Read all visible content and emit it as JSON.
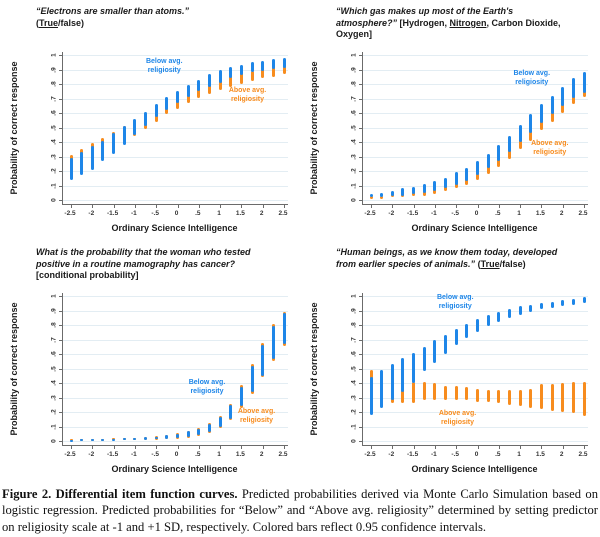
{
  "colors": {
    "below": "#1e86e8",
    "above": "#f78c1e",
    "grid": "#e3edf3",
    "axis": "#6b6b6b",
    "tick_text": "#333333",
    "title_text": "#1a1a1a"
  },
  "axes": {
    "x_label": "Ordinary Science Intelligence",
    "y_label": "Probability of correct response",
    "xlim": [
      -2.5,
      2.5
    ],
    "ylim": [
      0,
      1
    ],
    "x_tick_labels": [
      "-2.5",
      "-2",
      "-1.5",
      "-1",
      "-.5",
      "0",
      ".5",
      "1",
      "1.5",
      "2",
      "2.5"
    ],
    "x_tick_values": [
      -2.5,
      -2,
      -1.5,
      -1,
      -0.5,
      0,
      0.5,
      1,
      1.5,
      2,
      2.5
    ],
    "y_tick_labels": [
      "0",
      ".1",
      ".2",
      ".3",
      ".4",
      ".5",
      ".6",
      ".7",
      ".8",
      ".9",
      "1"
    ],
    "y_tick_values": [
      0,
      0.1,
      0.2,
      0.3,
      0.4,
      0.5,
      0.6,
      0.7,
      0.8,
      0.9,
      1
    ],
    "grid": true
  },
  "legend_text": {
    "below_lines": [
      "Below avg.",
      "religiosity"
    ],
    "above_lines": [
      "Above avg.",
      "religiosity"
    ]
  },
  "chart_data": [
    {
      "id": "electrons",
      "type": "ci-bar",
      "title_segments": [
        {
          "t": "“Electrons are smaller than atoms.”",
          "i": true
        },
        {
          "br": true
        },
        {
          "t": "("
        },
        {
          "t": "True",
          "u": true
        },
        {
          "t": "/false)"
        }
      ],
      "x": [
        -2.5,
        -2.25,
        -2,
        -1.75,
        -1.5,
        -1.25,
        -1,
        -0.75,
        -0.5,
        -0.25,
        0,
        0.25,
        0.5,
        0.75,
        1,
        1.25,
        1.5,
        1.75,
        2,
        2.25,
        2.5
      ],
      "series": [
        {
          "name": "Above avg. religiosity",
          "key": "above",
          "ci": [
            [
              0.16,
              0.31
            ],
            [
              0.2,
              0.35
            ],
            [
              0.24,
              0.39
            ],
            [
              0.29,
              0.43
            ],
            [
              0.34,
              0.47
            ],
            [
              0.39,
              0.51
            ],
            [
              0.44,
              0.55
            ],
            [
              0.49,
              0.6
            ],
            [
              0.54,
              0.64
            ],
            [
              0.59,
              0.68
            ],
            [
              0.63,
              0.72
            ],
            [
              0.67,
              0.75
            ],
            [
              0.7,
              0.78
            ],
            [
              0.73,
              0.81
            ],
            [
              0.76,
              0.84
            ],
            [
              0.78,
              0.86
            ],
            [
              0.8,
              0.88
            ],
            [
              0.82,
              0.89
            ],
            [
              0.84,
              0.91
            ],
            [
              0.85,
              0.92
            ],
            [
              0.87,
              0.93
            ]
          ]
        },
        {
          "name": "Below avg. religiosity",
          "key": "below",
          "ci": [
            [
              0.14,
              0.29
            ],
            [
              0.17,
              0.33
            ],
            [
              0.21,
              0.37
            ],
            [
              0.27,
              0.41
            ],
            [
              0.32,
              0.46
            ],
            [
              0.38,
              0.51
            ],
            [
              0.45,
              0.56
            ],
            [
              0.51,
              0.61
            ],
            [
              0.57,
              0.66
            ],
            [
              0.62,
              0.71
            ],
            [
              0.67,
              0.75
            ],
            [
              0.71,
              0.79
            ],
            [
              0.75,
              0.83
            ],
            [
              0.78,
              0.87
            ],
            [
              0.81,
              0.9
            ],
            [
              0.84,
              0.92
            ],
            [
              0.86,
              0.93
            ],
            [
              0.88,
              0.95
            ],
            [
              0.89,
              0.96
            ],
            [
              0.9,
              0.97
            ],
            [
              0.91,
              0.98
            ]
          ]
        }
      ],
      "legend": {
        "below": {
          "left_pct": 45,
          "top_pct": 9
        },
        "above": {
          "left_pct": 82,
          "top_pct": 28
        }
      }
    },
    {
      "id": "atmosphere-gas",
      "type": "ci-bar",
      "title_segments": [
        {
          "t": "“Which gas makes up most of the Earth's atmosphere?”",
          "i": true
        },
        {
          "t": " [Hydrogen, "
        },
        {
          "t": "Nitrogen",
          "u": true
        },
        {
          "t": ", Carbon Dioxide, Oxygen]"
        }
      ],
      "x": [
        -2.5,
        -2.25,
        -2,
        -1.75,
        -1.5,
        -1.25,
        -1,
        -0.75,
        -0.5,
        -0.25,
        0,
        0.25,
        0.5,
        0.75,
        1,
        1.25,
        1.5,
        1.75,
        2,
        2.25,
        2.5
      ],
      "series": [
        {
          "name": "Above avg. religiosity",
          "key": "above",
          "ci": [
            [
              0.01,
              0.03
            ],
            [
              0.01,
              0.03
            ],
            [
              0.02,
              0.04
            ],
            [
              0.02,
              0.05
            ],
            [
              0.03,
              0.06
            ],
            [
              0.03,
              0.08
            ],
            [
              0.04,
              0.09
            ],
            [
              0.06,
              0.11
            ],
            [
              0.08,
              0.13
            ],
            [
              0.1,
              0.16
            ],
            [
              0.14,
              0.2
            ],
            [
              0.18,
              0.25
            ],
            [
              0.23,
              0.3
            ],
            [
              0.28,
              0.37
            ],
            [
              0.35,
              0.44
            ],
            [
              0.41,
              0.5
            ],
            [
              0.48,
              0.57
            ],
            [
              0.54,
              0.63
            ],
            [
              0.6,
              0.68
            ],
            [
              0.66,
              0.73
            ],
            [
              0.71,
              0.77
            ]
          ]
        },
        {
          "name": "Below avg. religiosity",
          "key": "below",
          "ci": [
            [
              0.02,
              0.04
            ],
            [
              0.02,
              0.05
            ],
            [
              0.03,
              0.06
            ],
            [
              0.03,
              0.08
            ],
            [
              0.04,
              0.09
            ],
            [
              0.05,
              0.11
            ],
            [
              0.06,
              0.13
            ],
            [
              0.08,
              0.15
            ],
            [
              0.1,
              0.19
            ],
            [
              0.13,
              0.22
            ],
            [
              0.17,
              0.27
            ],
            [
              0.22,
              0.32
            ],
            [
              0.27,
              0.38
            ],
            [
              0.33,
              0.44
            ],
            [
              0.4,
              0.52
            ],
            [
              0.46,
              0.59
            ],
            [
              0.53,
              0.66
            ],
            [
              0.59,
              0.72
            ],
            [
              0.65,
              0.78
            ],
            [
              0.7,
              0.84
            ],
            [
              0.74,
              0.88
            ]
          ]
        }
      ],
      "legend": {
        "below": {
          "left_pct": 75,
          "top_pct": 17
        },
        "above": {
          "left_pct": 83,
          "top_pct": 63
        }
      }
    },
    {
      "id": "mammography",
      "type": "ci-bar",
      "title_segments": [
        {
          "t": "What is the probability that the woman who tested positive in a routine mamography has cancer?",
          "i": true
        },
        {
          "t": " [conditional probability]"
        }
      ],
      "x": [
        -2.5,
        -2.25,
        -2,
        -1.75,
        -1.5,
        -1.25,
        -1,
        -0.75,
        -0.5,
        -0.25,
        0,
        0.25,
        0.5,
        0.75,
        1,
        1.25,
        1.5,
        1.75,
        2,
        2.25,
        2.5
      ],
      "series": [
        {
          "name": "Above avg. religiosity",
          "key": "above",
          "ci": [
            [
              0.002,
              0.011
            ],
            [
              0.002,
              0.012
            ],
            [
              0.003,
              0.013
            ],
            [
              0.004,
              0.015
            ],
            [
              0.004,
              0.018
            ],
            [
              0.005,
              0.021
            ],
            [
              0.006,
              0.024
            ],
            [
              0.008,
              0.029
            ],
            [
              0.01,
              0.034
            ],
            [
              0.012,
              0.042
            ],
            [
              0.017,
              0.054
            ],
            [
              0.024,
              0.07
            ],
            [
              0.036,
              0.091
            ],
            [
              0.057,
              0.121
            ],
            [
              0.091,
              0.172
            ],
            [
              0.147,
              0.258
            ],
            [
              0.231,
              0.385
            ],
            [
              0.325,
              0.531
            ],
            [
              0.44,
              0.676
            ],
            [
              0.553,
              0.806
            ],
            [
              0.658,
              0.889
            ]
          ]
        },
        {
          "name": "Below avg. religiosity",
          "key": "below",
          "ci": [
            [
              0.003,
              0.01
            ],
            [
              0.003,
              0.011
            ],
            [
              0.004,
              0.012
            ],
            [
              0.005,
              0.014
            ],
            [
              0.005,
              0.016
            ],
            [
              0.006,
              0.019
            ],
            [
              0.007,
              0.022
            ],
            [
              0.009,
              0.026
            ],
            [
              0.011,
              0.031
            ],
            [
              0.014,
              0.039
            ],
            [
              0.019,
              0.05
            ],
            [
              0.027,
              0.066
            ],
            [
              0.04,
              0.086
            ],
            [
              0.062,
              0.115
            ],
            [
              0.098,
              0.165
            ],
            [
              0.155,
              0.25
            ],
            [
              0.24,
              0.375
            ],
            [
              0.335,
              0.52
            ],
            [
              0.45,
              0.665
            ],
            [
              0.565,
              0.795
            ],
            [
              0.67,
              0.88
            ]
          ]
        }
      ],
      "legend": {
        "below": {
          "left_pct": 64,
          "top_pct": 62
        },
        "above": {
          "left_pct": 86,
          "top_pct": 81
        }
      }
    },
    {
      "id": "human-evolution",
      "type": "ci-bar",
      "title_segments": [
        {
          "t": "“Human beings, as we know them today, developed from earlier species of animals.”",
          "i": true
        },
        {
          "t": " ("
        },
        {
          "t": "True",
          "u": true
        },
        {
          "t": "/false)"
        }
      ],
      "x": [
        -2.5,
        -2.25,
        -2,
        -1.75,
        -1.5,
        -1.25,
        -1,
        -0.75,
        -0.5,
        -0.25,
        0,
        0.25,
        0.5,
        0.75,
        1,
        1.25,
        1.5,
        1.75,
        2,
        2.25,
        2.5
      ],
      "series": [
        {
          "name": "Above avg. religiosity",
          "key": "above",
          "ci": [
            [
              0.25,
              0.49
            ],
            [
              0.25,
              0.48
            ],
            [
              0.26,
              0.45
            ],
            [
              0.26,
              0.42
            ],
            [
              0.26,
              0.41
            ],
            [
              0.28,
              0.41
            ],
            [
              0.28,
              0.4
            ],
            [
              0.28,
              0.38
            ],
            [
              0.28,
              0.38
            ],
            [
              0.28,
              0.37
            ],
            [
              0.27,
              0.36
            ],
            [
              0.27,
              0.35
            ],
            [
              0.26,
              0.35
            ],
            [
              0.25,
              0.35
            ],
            [
              0.24,
              0.35
            ],
            [
              0.23,
              0.36
            ],
            [
              0.22,
              0.39
            ],
            [
              0.21,
              0.39
            ],
            [
              0.2,
              0.4
            ],
            [
              0.19,
              0.41
            ],
            [
              0.17,
              0.41
            ]
          ]
        },
        {
          "name": "Below avg. religiosity",
          "key": "below",
          "ci": [
            [
              0.18,
              0.44
            ],
            [
              0.23,
              0.49
            ],
            [
              0.28,
              0.53
            ],
            [
              0.34,
              0.57
            ],
            [
              0.4,
              0.61
            ],
            [
              0.48,
              0.65
            ],
            [
              0.54,
              0.7
            ],
            [
              0.6,
              0.73
            ],
            [
              0.66,
              0.77
            ],
            [
              0.71,
              0.81
            ],
            [
              0.75,
              0.84
            ],
            [
              0.79,
              0.87
            ],
            [
              0.82,
              0.89
            ],
            [
              0.85,
              0.91
            ],
            [
              0.87,
              0.93
            ],
            [
              0.89,
              0.94
            ],
            [
              0.91,
              0.95
            ],
            [
              0.92,
              0.96
            ],
            [
              0.93,
              0.97
            ],
            [
              0.94,
              0.98
            ],
            [
              0.95,
              0.99
            ]
          ]
        }
      ],
      "legend": {
        "below": {
          "left_pct": 41,
          "top_pct": 6
        },
        "above": {
          "left_pct": 42,
          "top_pct": 82
        }
      }
    }
  ],
  "caption": {
    "segments": [
      {
        "t": "Figure 2. Differential item function curves.",
        "b": true
      },
      {
        "t": " Predicted probabilities derived via Monte Carlo Simulation based on logistic regression. Predicted probabilities for “Below” and “Above avg. religiosity” determined by setting predictor on religiosity scale at -1 and +1 SD, respectively. Colored bars reflect 0.95 confidence intervals."
      }
    ]
  }
}
